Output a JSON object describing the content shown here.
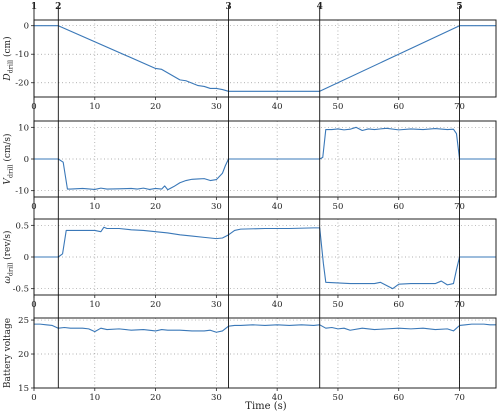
{
  "figure": {
    "xlabel": "Time (s)",
    "line_color": "#3a78b8",
    "event_markers": [
      {
        "label": "1",
        "x": 0
      },
      {
        "label": "2",
        "x": 4
      },
      {
        "label": "3",
        "x": 32
      },
      {
        "label": "4",
        "x": 47
      },
      {
        "label": "5",
        "x": 70
      }
    ]
  },
  "chart_data": [
    {
      "type": "line",
      "ylabel_main": "D",
      "ylabel_sub": "drill",
      "ylabel_unit": " (cm)",
      "xlim": [
        0,
        76
      ],
      "ylim": [
        -25,
        2
      ],
      "xticks": [
        0,
        10,
        20,
        30,
        40,
        50,
        60,
        70
      ],
      "yticks": [
        -20,
        -10,
        0
      ],
      "grid": true,
      "series": [
        {
          "x": [
            0,
            4,
            20,
            21,
            24,
            25,
            27,
            28,
            29,
            30,
            31,
            32,
            47,
            70,
            76
          ],
          "y": [
            0,
            0,
            -15,
            -15.3,
            -19,
            -19.3,
            -21,
            -21.3,
            -22,
            -22,
            -22.4,
            -23,
            -23,
            0,
            0
          ]
        }
      ]
    },
    {
      "type": "line",
      "ylabel_main": "V",
      "ylabel_sub": "drill",
      "ylabel_unit": " (cm/s)",
      "xlim": [
        0,
        76
      ],
      "ylim": [
        -12,
        12
      ],
      "xticks": [
        0,
        10,
        20,
        30,
        40,
        50,
        60,
        70
      ],
      "yticks": [
        -10,
        0,
        10
      ],
      "grid": true,
      "series": [
        {
          "x": [
            0,
            4,
            4.8,
            5.5,
            6,
            8,
            10,
            11,
            12,
            14,
            16,
            17,
            18,
            19,
            20,
            21,
            21.5,
            22,
            23,
            24,
            25,
            26,
            27,
            28,
            29,
            30,
            31,
            31.5,
            32,
            47,
            47.5,
            48,
            49,
            50,
            51,
            52,
            53,
            54,
            55,
            56,
            58,
            60,
            62,
            64,
            66,
            68,
            69,
            69.5,
            70,
            76
          ],
          "y": [
            0,
            0,
            -1,
            -9.5,
            -9.5,
            -9.3,
            -9.6,
            -9.2,
            -9.5,
            -9.4,
            -9.3,
            -9.5,
            -9.2,
            -9.6,
            -9.3,
            -9.5,
            -8.5,
            -9.7,
            -8.7,
            -7.5,
            -6.8,
            -6.4,
            -6.3,
            -6.2,
            -6.8,
            -6.5,
            -4.5,
            -2,
            0,
            0,
            0.5,
            9.3,
            9.3,
            9.5,
            9.2,
            9.4,
            10,
            9,
            9.5,
            9.3,
            9.7,
            9.2,
            9.5,
            9.3,
            9.6,
            9.3,
            9.4,
            8,
            0,
            0
          ]
        }
      ]
    },
    {
      "type": "line",
      "ylabel_main": "ω",
      "ylabel_sub": "drill",
      "ylabel_unit": " (rev/s)",
      "xlim": [
        0,
        76
      ],
      "ylim": [
        -0.6,
        0.6
      ],
      "xticks": [
        0,
        10,
        20,
        30,
        40,
        50,
        60,
        70
      ],
      "yticks": [
        -0.5,
        0,
        0.5
      ],
      "grid": true,
      "series": [
        {
          "x": [
            0,
            4,
            4.7,
            5.3,
            10,
            11,
            11.5,
            12,
            14,
            16,
            18,
            20,
            22,
            24,
            26,
            28,
            30,
            31,
            32,
            33,
            34,
            38,
            42,
            46,
            47,
            47.6,
            48,
            50,
            52,
            54,
            56,
            57,
            58,
            59,
            60,
            62,
            64,
            66,
            67,
            68,
            69,
            69.5,
            70,
            76
          ],
          "y": [
            0,
            0,
            0.05,
            0.42,
            0.42,
            0.4,
            0.47,
            0.45,
            0.45,
            0.43,
            0.42,
            0.4,
            0.38,
            0.35,
            0.33,
            0.31,
            0.29,
            0.3,
            0.35,
            0.42,
            0.44,
            0.45,
            0.45,
            0.46,
            0.46,
            -0.1,
            -0.4,
            -0.41,
            -0.42,
            -0.42,
            -0.42,
            -0.4,
            -0.45,
            -0.5,
            -0.43,
            -0.42,
            -0.42,
            -0.42,
            -0.38,
            -0.44,
            -0.42,
            -0.2,
            0,
            0
          ]
        }
      ]
    },
    {
      "type": "line",
      "ylabel_main": "Battery voltage",
      "ylabel_sub": "",
      "ylabel_unit": "",
      "xlim": [
        0,
        76
      ],
      "ylim": [
        15,
        25.3
      ],
      "xticks": [
        0,
        10,
        20,
        30,
        40,
        50,
        60,
        70
      ],
      "yticks": [
        15,
        20,
        25
      ],
      "grid": true,
      "series": [
        {
          "x": [
            0,
            1,
            2,
            3,
            4,
            5,
            6,
            8,
            9,
            10,
            11,
            12,
            14,
            16,
            18,
            20,
            21,
            22,
            24,
            26,
            28,
            29,
            30,
            31,
            32,
            33,
            34,
            36,
            38,
            40,
            42,
            44,
            46,
            47,
            48,
            49,
            50,
            51,
            52,
            54,
            56,
            58,
            60,
            62,
            64,
            66,
            68,
            69,
            70,
            71,
            72,
            74,
            75,
            76
          ],
          "y": [
            24.4,
            24.4,
            24.3,
            24.2,
            23.8,
            23.9,
            23.8,
            23.8,
            23.7,
            23.3,
            23.8,
            23.6,
            23.7,
            23.5,
            23.6,
            23.4,
            23.6,
            23.5,
            23.5,
            23.4,
            23.4,
            23.5,
            23.2,
            23.4,
            24.1,
            24.2,
            24.2,
            24.3,
            24.2,
            24.3,
            24.2,
            24.3,
            24.2,
            24.3,
            23.8,
            23.9,
            23.7,
            23.8,
            23.5,
            23.8,
            23.6,
            23.7,
            23.8,
            23.7,
            23.8,
            23.6,
            23.7,
            23.4,
            24.2,
            24.3,
            24.4,
            24.4,
            24.3,
            24.3
          ]
        }
      ]
    }
  ]
}
